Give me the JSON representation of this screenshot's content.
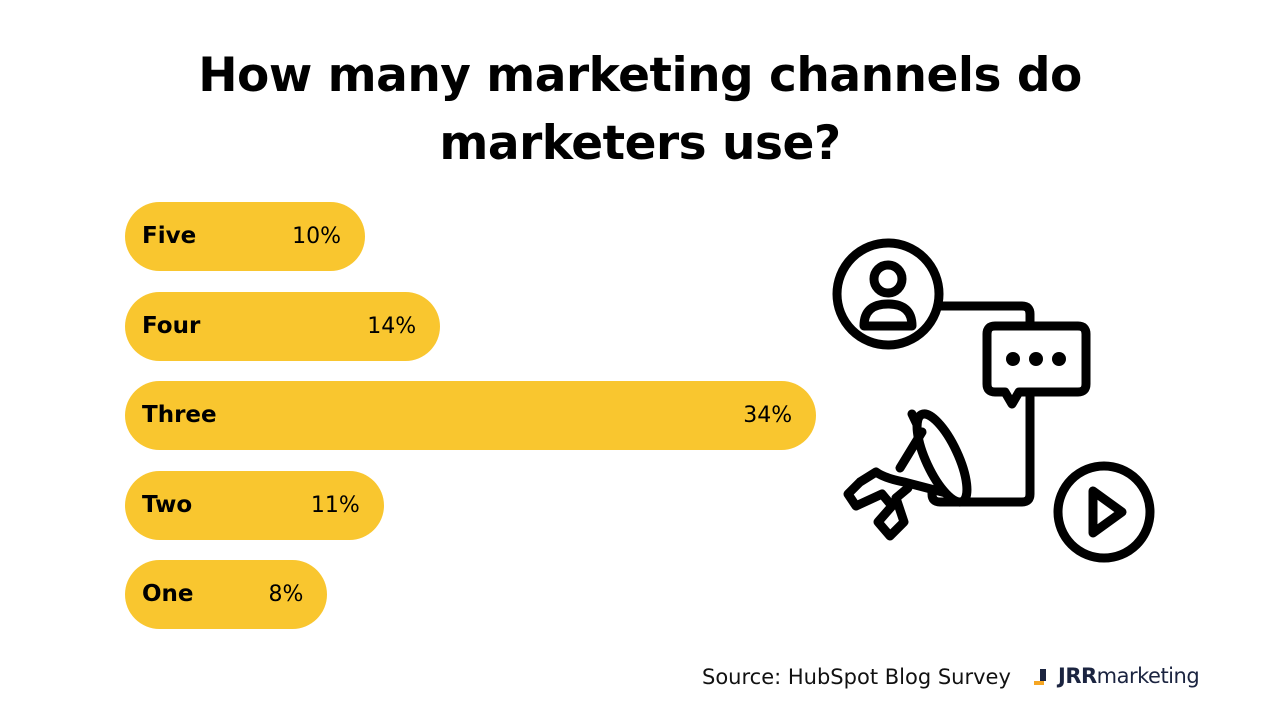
{
  "chart_data": {
    "type": "bar",
    "orientation": "horizontal",
    "title": "How many marketing channels do marketers use?",
    "title_lines": [
      "How many marketing channels do",
      "marketers use?"
    ],
    "categories": [
      "Five",
      "Four",
      "Three",
      "Two",
      "One"
    ],
    "values": [
      10,
      14,
      34,
      11,
      8
    ],
    "value_labels": [
      "10%",
      "14%",
      "34%",
      "11%",
      "8%"
    ],
    "unit": "%",
    "xlabel": "",
    "ylabel": "",
    "grid": false,
    "bar_color": "#F9C62F"
  },
  "illustration": {
    "icons": [
      "user-icon",
      "chat-bubble-icon",
      "megaphone-icon",
      "play-icon",
      "phone-icon"
    ]
  },
  "footer": {
    "source": "Source: HubSpot Blog Survey",
    "logo_bold": "JRR",
    "logo_light": "marketing",
    "logo_colors": {
      "text": "#1B2440",
      "accent": "#F5A623"
    }
  }
}
